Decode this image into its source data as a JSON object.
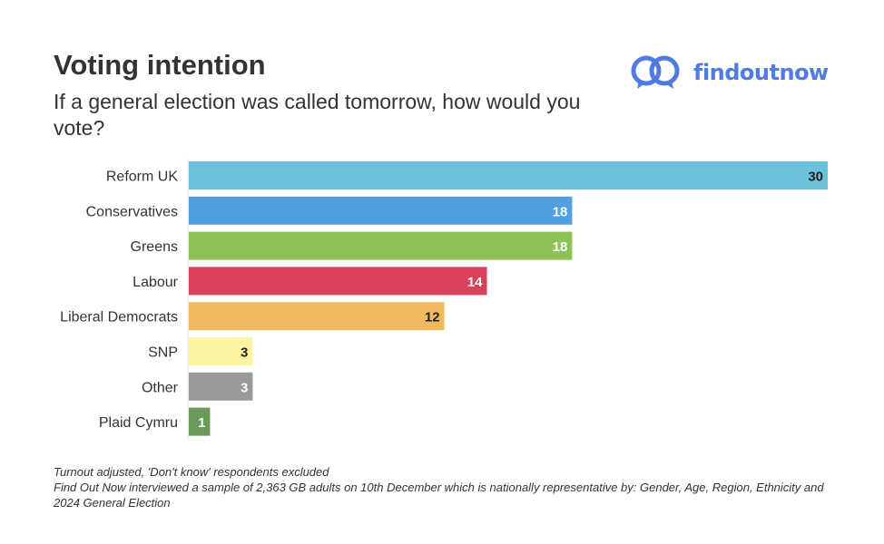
{
  "header": {
    "title": "Voting intention",
    "subtitle": "If a general election was called tomorrow, how would you vote?"
  },
  "brand": {
    "name": "findoutnow",
    "logo_icon": "interlocking-rings-icon",
    "color": "#4f7be3"
  },
  "chart_data": {
    "type": "bar",
    "orientation": "horizontal",
    "categories": [
      "Reform UK",
      "Conservatives",
      "Greens",
      "Labour",
      "Liberal Democrats",
      "SNP",
      "Other",
      "Plaid Cymru"
    ],
    "values": [
      30,
      18,
      18,
      14,
      12,
      3,
      3,
      1
    ],
    "colors": [
      "#6ac3d8",
      "#519fe0",
      "#8ec257",
      "#d9415a",
      "#f0b95e",
      "#fdf3a3",
      "#999999",
      "#6b9a5a"
    ],
    "label_colors": [
      "#222222",
      "#ffffff",
      "#ffffff",
      "#ffffff",
      "#222222",
      "#222222",
      "#ffffff",
      "#ffffff"
    ],
    "xlim": [
      0,
      30
    ],
    "grid": false,
    "title": "Voting intention",
    "xlabel": "",
    "ylabel": ""
  },
  "footnotes": {
    "line1": "Turnout adjusted, 'Don't know' respondents excluded",
    "line2": "Find Out Now interviewed a sample of 2,363 GB adults on 10th December which is nationally representative by: Gender, Age, Region, Ethnicity and 2024 General Election"
  }
}
